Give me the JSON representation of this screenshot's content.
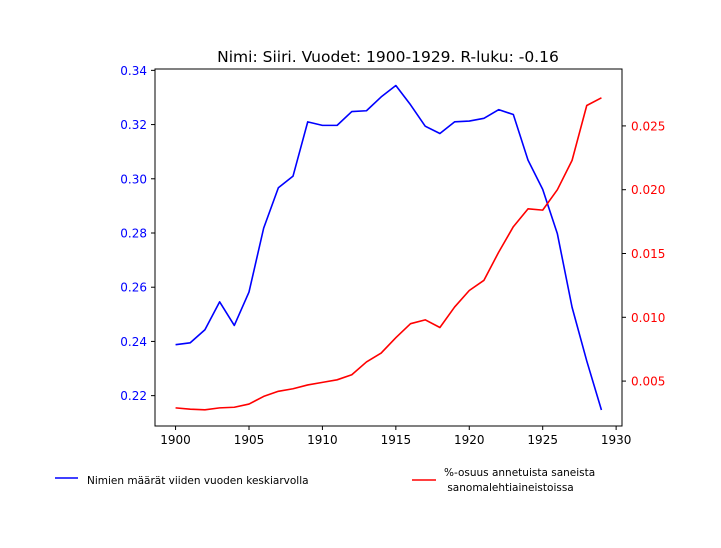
{
  "chart_data": {
    "type": "line",
    "title": "Nimi: Siiri. Vuodet: 1900-1929. R-luku: -0.16",
    "x": [
      1900,
      1901,
      1902,
      1903,
      1904,
      1905,
      1906,
      1907,
      1908,
      1909,
      1910,
      1911,
      1912,
      1913,
      1914,
      1915,
      1916,
      1917,
      1918,
      1919,
      1920,
      1921,
      1922,
      1923,
      1924,
      1925,
      1926,
      1927,
      1928,
      1929
    ],
    "xlim": [
      1898.6,
      1930.4
    ],
    "xticks": [
      1900,
      1905,
      1910,
      1915,
      1920,
      1925,
      1930
    ],
    "series": [
      {
        "name": "Nimien määrät viiden vuoden keskiarvolla",
        "axis": "left",
        "color": "#0000ff",
        "values": [
          0.2388,
          0.2395,
          0.2443,
          0.2546,
          0.2459,
          0.2582,
          0.2818,
          0.2967,
          0.301,
          0.321,
          0.3197,
          0.3197,
          0.3248,
          0.3251,
          0.3302,
          0.3344,
          0.3273,
          0.3194,
          0.3167,
          0.321,
          0.3213,
          0.3223,
          0.3255,
          0.3237,
          0.3069,
          0.2961,
          0.2797,
          0.2526,
          0.2328,
          0.2147
        ]
      },
      {
        "name": "%-osuus annetuista saneista\n sanomalehtiaineistoissa",
        "axis": "right",
        "color": "#ff0000",
        "values": [
          0.0029,
          0.0028,
          0.00275,
          0.0029,
          0.00295,
          0.0032,
          0.0038,
          0.0042,
          0.0044,
          0.0047,
          0.0049,
          0.0051,
          0.0055,
          0.0065,
          0.0072,
          0.0084,
          0.0095,
          0.0098,
          0.0092,
          0.0108,
          0.0121,
          0.0129,
          0.0151,
          0.0171,
          0.0185,
          0.0184,
          0.02,
          0.0223,
          0.0266,
          0.0272
        ]
      }
    ],
    "y_left": {
      "lim": [
        0.2088,
        0.3405
      ],
      "ticks": [
        0.22,
        0.24,
        0.26,
        0.28,
        0.3,
        0.32,
        0.34
      ],
      "tick_labels": [
        "0.22",
        "0.24",
        "0.26",
        "0.28",
        "0.30",
        "0.32",
        "0.34"
      ],
      "color": "#0000ff"
    },
    "y_right": {
      "lim": [
        0.00148,
        0.02946
      ],
      "ticks": [
        0.005,
        0.01,
        0.015,
        0.02,
        0.025
      ],
      "tick_labels": [
        "0.005",
        "0.010",
        "0.015",
        "0.020",
        "0.025"
      ],
      "color": "#ff0000"
    },
    "legend": "bottom",
    "grid": false
  }
}
